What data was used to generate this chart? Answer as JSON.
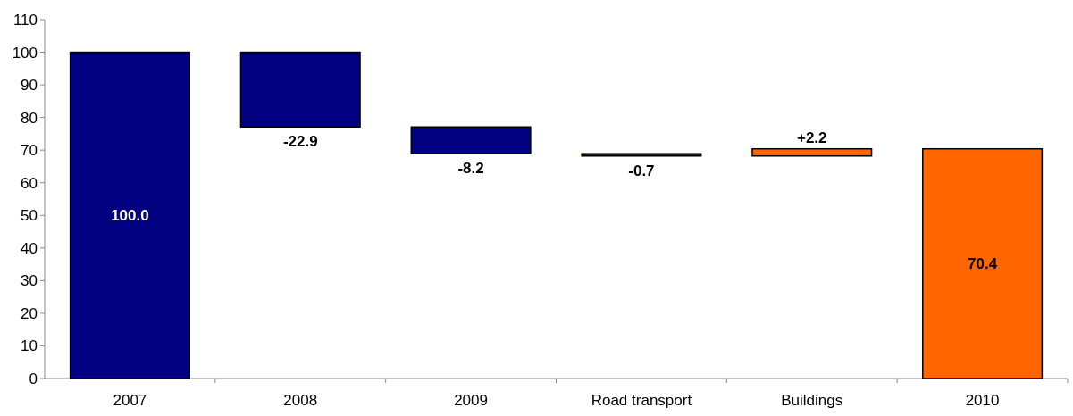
{
  "chart_data": {
    "type": "bar",
    "categories": [
      "2007",
      "2008",
      "2009",
      "Road transport",
      "Buildings",
      "2010"
    ],
    "values": [
      100.0,
      -22.9,
      -8.2,
      -0.7,
      2.2,
      70.4
    ],
    "base": [
      0,
      100.0,
      77.1,
      68.9,
      68.2,
      0
    ],
    "colors": [
      "#000080",
      "#000080",
      "#000080",
      "#000080",
      "#ff6600",
      "#ff6600"
    ],
    "value_labels": [
      "100.0",
      "-22.9",
      "-8.2",
      "-0.7",
      "+2.2",
      "70.4"
    ],
    "ylim": [
      0,
      110
    ],
    "yticks": [
      0,
      10,
      20,
      30,
      40,
      50,
      60,
      70,
      80,
      90,
      100,
      110
    ],
    "grid": false
  }
}
